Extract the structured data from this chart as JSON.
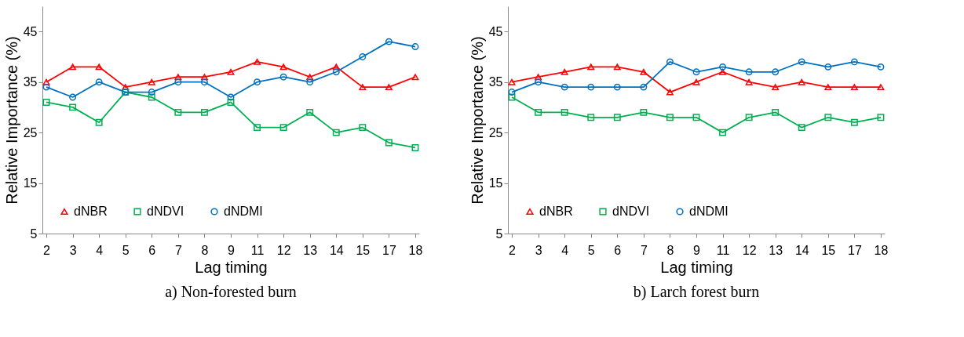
{
  "chart_data": [
    {
      "type": "line",
      "title": "a) Non-forested burn",
      "xlabel": "Lag timing",
      "ylabel": "Relative Importance (%)",
      "categories": [
        "2",
        "3",
        "4",
        "5",
        "6",
        "7",
        "8",
        "9",
        "11",
        "12",
        "13",
        "14",
        "15",
        "17",
        "18"
      ],
      "series": [
        {
          "name": "dNBR",
          "color": "#ff0000",
          "marker": "triangle",
          "values": [
            35,
            38,
            38,
            34,
            35,
            36,
            36,
            37,
            39,
            38,
            36,
            38,
            34,
            34,
            36
          ]
        },
        {
          "name": "dNDVI",
          "color": "#00b050",
          "marker": "square",
          "values": [
            31,
            30,
            27,
            33,
            32,
            29,
            29,
            31,
            26,
            26,
            29,
            25,
            26,
            23,
            22
          ]
        },
        {
          "name": "dNDMI",
          "color": "#0070c0",
          "marker": "circle",
          "values": [
            34,
            32,
            35,
            33,
            33,
            35,
            35,
            32,
            35,
            36,
            35,
            37,
            40,
            43,
            42
          ]
        }
      ],
      "ylim": [
        5,
        50
      ],
      "yticks": [
        5,
        15,
        25,
        35,
        45
      ],
      "grid": false,
      "legend": "bottom"
    },
    {
      "type": "line",
      "title": "b) Larch forest burn",
      "xlabel": "Lag timing",
      "ylabel": "Relative Importance (%)",
      "categories": [
        "2",
        "3",
        "4",
        "5",
        "6",
        "7",
        "8",
        "9",
        "11",
        "12",
        "13",
        "14",
        "15",
        "17",
        "18"
      ],
      "series": [
        {
          "name": "dNBR",
          "color": "#ff0000",
          "marker": "triangle",
          "values": [
            35,
            36,
            37,
            38,
            38,
            37,
            33,
            35,
            37,
            35,
            34,
            35,
            34,
            34,
            34
          ]
        },
        {
          "name": "dNDVI",
          "color": "#00b050",
          "marker": "square",
          "values": [
            32,
            29,
            29,
            28,
            28,
            29,
            28,
            28,
            25,
            28,
            29,
            26,
            28,
            27,
            28
          ]
        },
        {
          "name": "dNDMI",
          "color": "#0070c0",
          "marker": "circle",
          "values": [
            33,
            35,
            34,
            34,
            34,
            34,
            39,
            37,
            38,
            37,
            37,
            39,
            38,
            39,
            38
          ]
        }
      ],
      "ylim": [
        5,
        50
      ],
      "yticks": [
        5,
        15,
        25,
        35,
        45
      ],
      "grid": false,
      "legend": "bottom"
    }
  ]
}
